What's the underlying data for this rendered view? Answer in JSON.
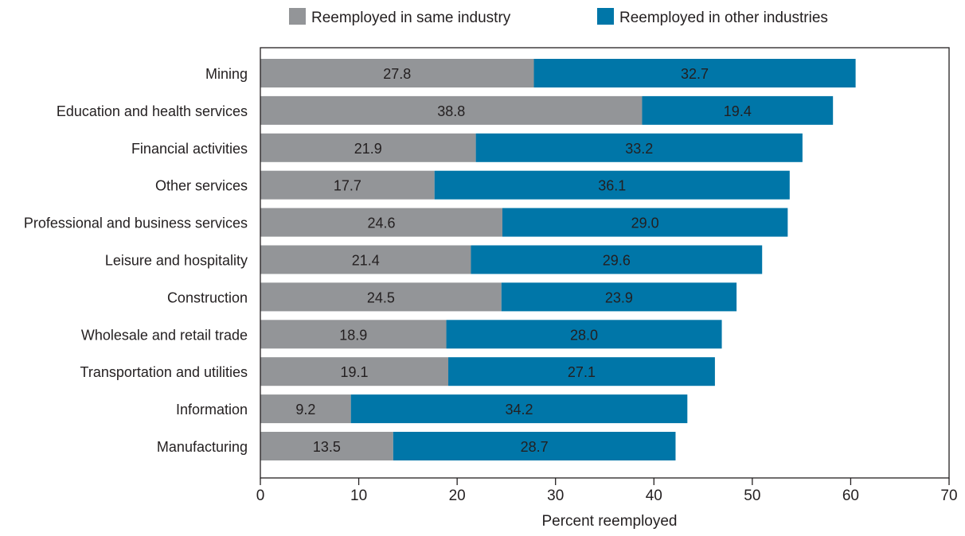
{
  "chart_data": {
    "type": "bar",
    "orientation": "horizontal",
    "stacked": true,
    "categories": [
      "Mining",
      "Education and health services",
      "Financial activities",
      "Other services",
      "Professional and business services",
      "Leisure and hospitality",
      "Construction",
      "Wholesale and retail trade",
      "Transportation and utilities",
      "Information",
      "Manufacturing"
    ],
    "series": [
      {
        "name": "Reemployed in same industry",
        "color": "#939598",
        "values": [
          27.8,
          38.8,
          21.9,
          17.7,
          24.6,
          21.4,
          24.5,
          18.9,
          19.1,
          9.2,
          13.5
        ],
        "labels": [
          "27.8",
          "38.8",
          "21.9",
          "17.7",
          "24.6",
          "21.4",
          "24.5",
          "18.9",
          "19.1",
          "9.2",
          "13.5"
        ]
      },
      {
        "name": "Reemployed in other industries",
        "color": "#0076a8",
        "values": [
          32.7,
          19.4,
          33.2,
          36.1,
          29.0,
          29.6,
          23.9,
          28.0,
          27.1,
          34.2,
          28.7
        ],
        "labels": [
          "32.7",
          "19.4",
          "33.2",
          "36.1",
          "29.0",
          "29.6",
          "23.9",
          "28.0",
          "27.1",
          "34.2",
          "28.7"
        ]
      }
    ],
    "title": "",
    "xlabel": "Percent reemployed",
    "ylabel": "",
    "xlim": [
      0,
      70
    ],
    "xticks": [
      0,
      10,
      20,
      30,
      40,
      50,
      60,
      70
    ],
    "xtick_labels": [
      "0",
      "10",
      "20",
      "30",
      "40",
      "50",
      "60",
      "70"
    ],
    "grid": false,
    "legend_position": "top"
  }
}
